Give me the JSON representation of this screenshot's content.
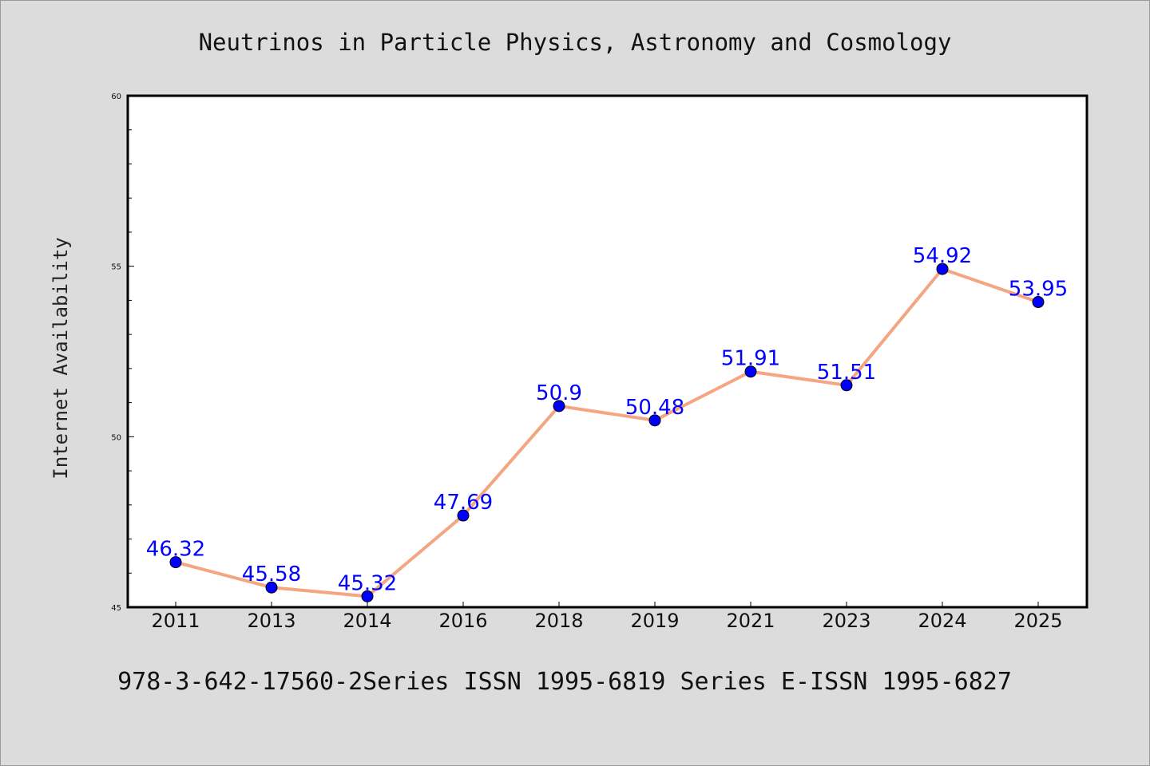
{
  "chart_data": {
    "type": "line",
    "title": "Neutrinos in Particle Physics, Astronomy and Cosmology",
    "xlabel": "",
    "ylabel": "Internet Availability",
    "footer": "978-3-642-17560-2Series ISSN 1995-6819 Series E-ISSN 1995-6827",
    "categories": [
      "2011",
      "2013",
      "2014",
      "2016",
      "2018",
      "2019",
      "2021",
      "2023",
      "2024",
      "2025"
    ],
    "values": [
      46.32,
      45.58,
      45.32,
      47.69,
      50.9,
      50.48,
      51.91,
      51.51,
      54.92,
      53.95
    ],
    "value_labels": [
      "46.32",
      "45.58",
      "45.32",
      "47.69",
      "50.9",
      "50.48",
      "51.91",
      "51.51",
      "54.92",
      "53.95"
    ],
    "ylim": [
      45,
      60
    ],
    "yticks": [
      "45",
      "50",
      "55",
      "60"
    ],
    "grid": false,
    "legend": "none",
    "colors": {
      "line": "#f4a582",
      "marker": "#0000ff",
      "label": "#0000ff",
      "background": "#dcdcdc",
      "plot_background": "#ffffff"
    }
  }
}
